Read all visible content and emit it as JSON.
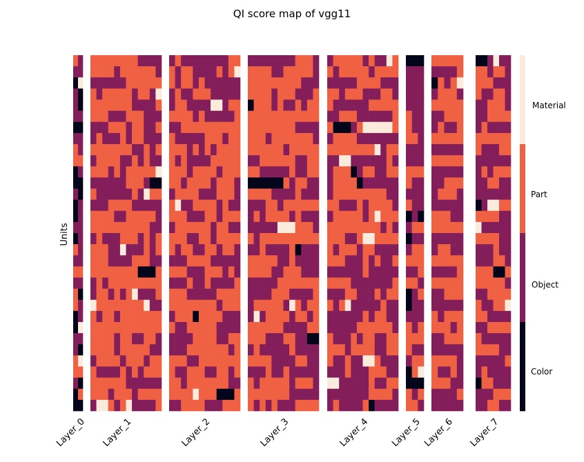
{
  "chart_data": {
    "type": "heatmap",
    "title": "QI score map of vgg11",
    "ylabel": "Units",
    "xlabel": "",
    "categories": [
      "Color",
      "Object",
      "Part",
      "Material"
    ],
    "palette": {
      "Color": "#03051a",
      "Object": "#841e5a",
      "Part": "#f06043",
      "Material": "#faebdd"
    },
    "colorbar_labels": [
      "Material",
      "Part",
      "Object",
      "Color"
    ],
    "layers": [
      {
        "name": "Layer_0",
        "units": 2
      },
      {
        "name": "Layer_1",
        "units": 12
      },
      {
        "name": "Layer_2",
        "units": 12
      },
      {
        "name": "Layer_3",
        "units": 12
      },
      {
        "name": "Layer_4",
        "units": 12
      },
      {
        "name": "Layer_5",
        "units": 3
      },
      {
        "name": "Layer_6",
        "units": 5
      },
      {
        "name": "Layer_7",
        "units": 6
      }
    ],
    "rows": 32,
    "approx_proportions": {
      "Layer_0": {
        "Color": 0.35,
        "Object": 0.45,
        "Part": 0.17,
        "Material": 0.03
      },
      "Layer_1": {
        "Color": 0.01,
        "Object": 0.33,
        "Part": 0.63,
        "Material": 0.03
      },
      "Layer_2": {
        "Color": 0.01,
        "Object": 0.38,
        "Part": 0.59,
        "Material": 0.02
      },
      "Layer_3": {
        "Color": 0.01,
        "Object": 0.47,
        "Part": 0.5,
        "Material": 0.02
      },
      "Layer_4": {
        "Color": 0.01,
        "Object": 0.46,
        "Part": 0.5,
        "Material": 0.03
      },
      "Layer_5": {
        "Color": 0.08,
        "Object": 0.44,
        "Part": 0.44,
        "Material": 0.04
      },
      "Layer_6": {
        "Color": 0.02,
        "Object": 0.52,
        "Part": 0.43,
        "Material": 0.03
      },
      "Layer_7": {
        "Color": 0.02,
        "Object": 0.47,
        "Part": 0.48,
        "Material": 0.03
      }
    }
  }
}
